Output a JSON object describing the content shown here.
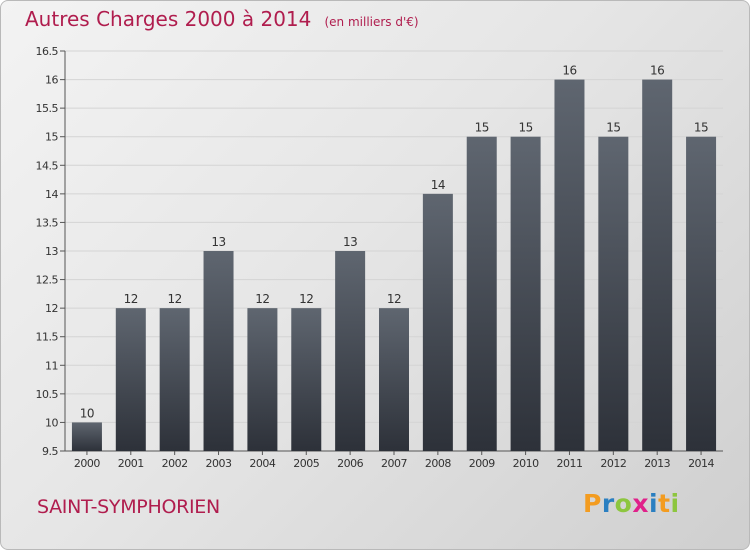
{
  "header": {
    "title": "Autres Charges 2000 à 2014",
    "unit": "(en milliers d'€)"
  },
  "footer": {
    "commune": "SAINT-SYMPHORIEN"
  },
  "logo": {
    "text": "Proxiti",
    "letters": [
      {
        "ch": "P",
        "color": "#f39c20"
      },
      {
        "ch": "r",
        "color": "#2a7fc1"
      },
      {
        "ch": "o",
        "color": "#8dc63f"
      },
      {
        "ch": "x",
        "color": "#e0218a"
      },
      {
        "ch": "i",
        "color": "#2a7fc1"
      },
      {
        "ch": "t",
        "color": "#f39c20"
      },
      {
        "ch": "i",
        "color": "#8dc63f"
      }
    ]
  },
  "colors": {
    "title": "#b01d4e",
    "bar_top": "#5f6670",
    "bar_bottom": "#2d3139"
  },
  "chart_data": {
    "type": "bar",
    "categories": [
      "2000",
      "2001",
      "2002",
      "2003",
      "2004",
      "2005",
      "2006",
      "2007",
      "2008",
      "2009",
      "2010",
      "2011",
      "2012",
      "2013",
      "2014"
    ],
    "values": [
      10,
      12,
      12,
      13,
      12,
      12,
      13,
      12,
      14,
      15,
      15,
      16,
      15,
      16,
      15
    ],
    "data_labels": [
      "10",
      "12",
      "12",
      "13",
      "12",
      "12",
      "13",
      "12",
      "14",
      "15",
      "15",
      "16",
      "15",
      "16",
      "15"
    ],
    "title": "Autres Charges 2000 à 2014",
    "ylim": [
      9.5,
      16.5
    ],
    "yticks": [
      9.5,
      10,
      10.5,
      11,
      11.5,
      12,
      12.5,
      13,
      13.5,
      14,
      14.5,
      15,
      15.5,
      16,
      16.5
    ],
    "ytick_labels": [
      "9.5",
      "10",
      "10.5",
      "11",
      "11.5",
      "12",
      "12.5",
      "13",
      "13.5",
      "14",
      "14.5",
      "15",
      "15.5",
      "16",
      "16.5"
    ],
    "grid": true
  }
}
